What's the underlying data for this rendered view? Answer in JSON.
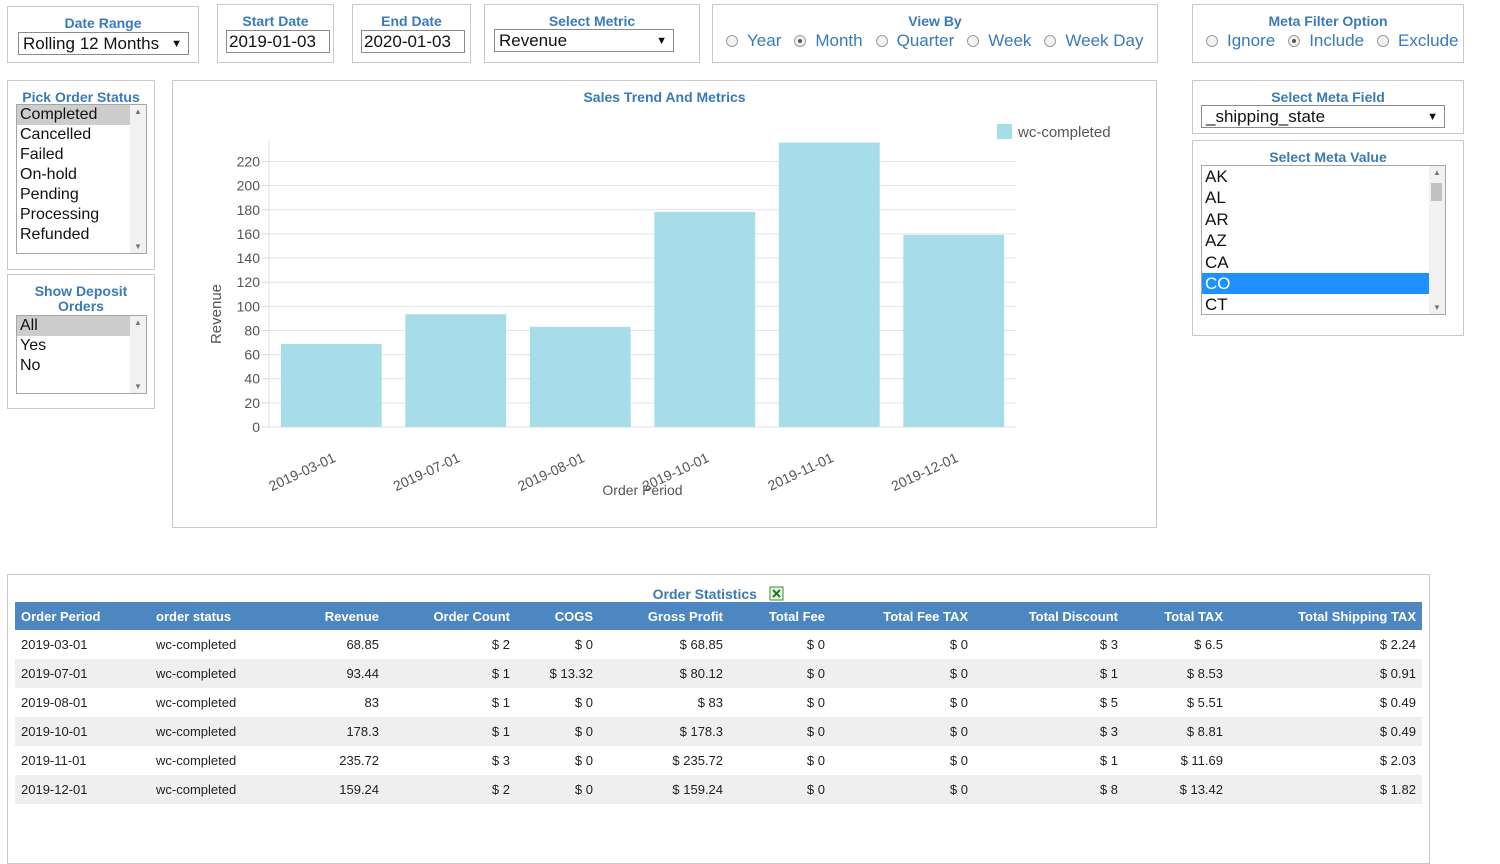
{
  "date_range": {
    "label": "Date Range",
    "value": "Rolling 12 Months"
  },
  "start_date": {
    "label": "Start Date",
    "value": "2019-01-03"
  },
  "end_date": {
    "label": "End Date",
    "value": "2020-01-03"
  },
  "select_metric": {
    "label": "Select Metric",
    "value": "Revenue"
  },
  "view_by": {
    "label": "View By",
    "options": [
      "Year",
      "Month",
      "Quarter",
      "Week",
      "Week Day"
    ],
    "selected": "Month"
  },
  "meta_filter_option": {
    "label": "Meta Filter Option",
    "options": [
      "Ignore",
      "Include",
      "Exclude"
    ],
    "selected": "Include"
  },
  "order_status": {
    "label": "Pick Order Status",
    "options": [
      "Completed",
      "Cancelled",
      "Failed",
      "On-hold",
      "Pending",
      "Processing",
      "Refunded"
    ],
    "selected": "Completed"
  },
  "deposit_orders": {
    "label_line1": "Show Deposit",
    "label_line2": "Orders",
    "options": [
      "All",
      "Yes",
      "No"
    ],
    "selected": "All"
  },
  "meta_field": {
    "label": "Select Meta Field",
    "value": "_shipping_state"
  },
  "meta_value": {
    "label": "Select Meta Value",
    "options": [
      "AK",
      "AL",
      "AR",
      "AZ",
      "CA",
      "CO",
      "CT"
    ],
    "selected": "CO"
  },
  "chart_panel": {
    "title": "Sales Trend And Metrics"
  },
  "chart_data": {
    "type": "bar",
    "title": "Sales Trend And Metrics",
    "categories": [
      "2019-03-01",
      "2019-07-01",
      "2019-08-01",
      "2019-10-01",
      "2019-11-01",
      "2019-12-01"
    ],
    "series": [
      {
        "name": "wc-completed",
        "values": [
          68.85,
          93.44,
          83,
          178.3,
          235.72,
          159.24
        ]
      }
    ],
    "xlabel": "Order Period",
    "ylabel": "Revenue",
    "ylim": [
      0,
      237
    ],
    "yticks": [
      0,
      20,
      40,
      60,
      80,
      100,
      120,
      140,
      160,
      180,
      200,
      220
    ],
    "legend": "top-right",
    "grid": true,
    "bar_color": "#a7dde8"
  },
  "stats": {
    "title": "Order Statistics",
    "export_icon": "excel-export-icon",
    "columns": [
      "Order Period",
      "order status",
      "Revenue",
      "Order Count",
      "COGS",
      "Gross Profit",
      "Total Fee",
      "Total Fee TAX",
      "Total Discount",
      "Total TAX",
      "Total Shipping TAX"
    ],
    "rows": [
      [
        "2019-03-01",
        "wc-completed",
        "68.85",
        "$ 2",
        "$ 0",
        "$ 68.85",
        "$ 0",
        "$ 0",
        "$ 3",
        "$ 6.5",
        "$ 2.24"
      ],
      [
        "2019-07-01",
        "wc-completed",
        "93.44",
        "$ 1",
        "$ 13.32",
        "$ 80.12",
        "$ 0",
        "$ 0",
        "$ 1",
        "$ 8.53",
        "$ 0.91"
      ],
      [
        "2019-08-01",
        "wc-completed",
        "83",
        "$ 1",
        "$ 0",
        "$ 83",
        "$ 0",
        "$ 0",
        "$ 5",
        "$ 5.51",
        "$ 0.49"
      ],
      [
        "2019-10-01",
        "wc-completed",
        "178.3",
        "$ 1",
        "$ 0",
        "$ 178.3",
        "$ 0",
        "$ 0",
        "$ 3",
        "$ 8.81",
        "$ 0.49"
      ],
      [
        "2019-11-01",
        "wc-completed",
        "235.72",
        "$ 3",
        "$ 0",
        "$ 235.72",
        "$ 0",
        "$ 0",
        "$ 1",
        "$ 11.69",
        "$ 2.03"
      ],
      [
        "2019-12-01",
        "wc-completed",
        "159.24",
        "$ 2",
        "$ 0",
        "$ 159.24",
        "$ 0",
        "$ 0",
        "$ 8",
        "$ 13.42",
        "$ 1.82"
      ]
    ]
  },
  "colors": {
    "accent": "#3a7ab8",
    "table_header": "#4c87c2",
    "selected_blue": "#1e90ff",
    "bar": "#a7dde8"
  }
}
